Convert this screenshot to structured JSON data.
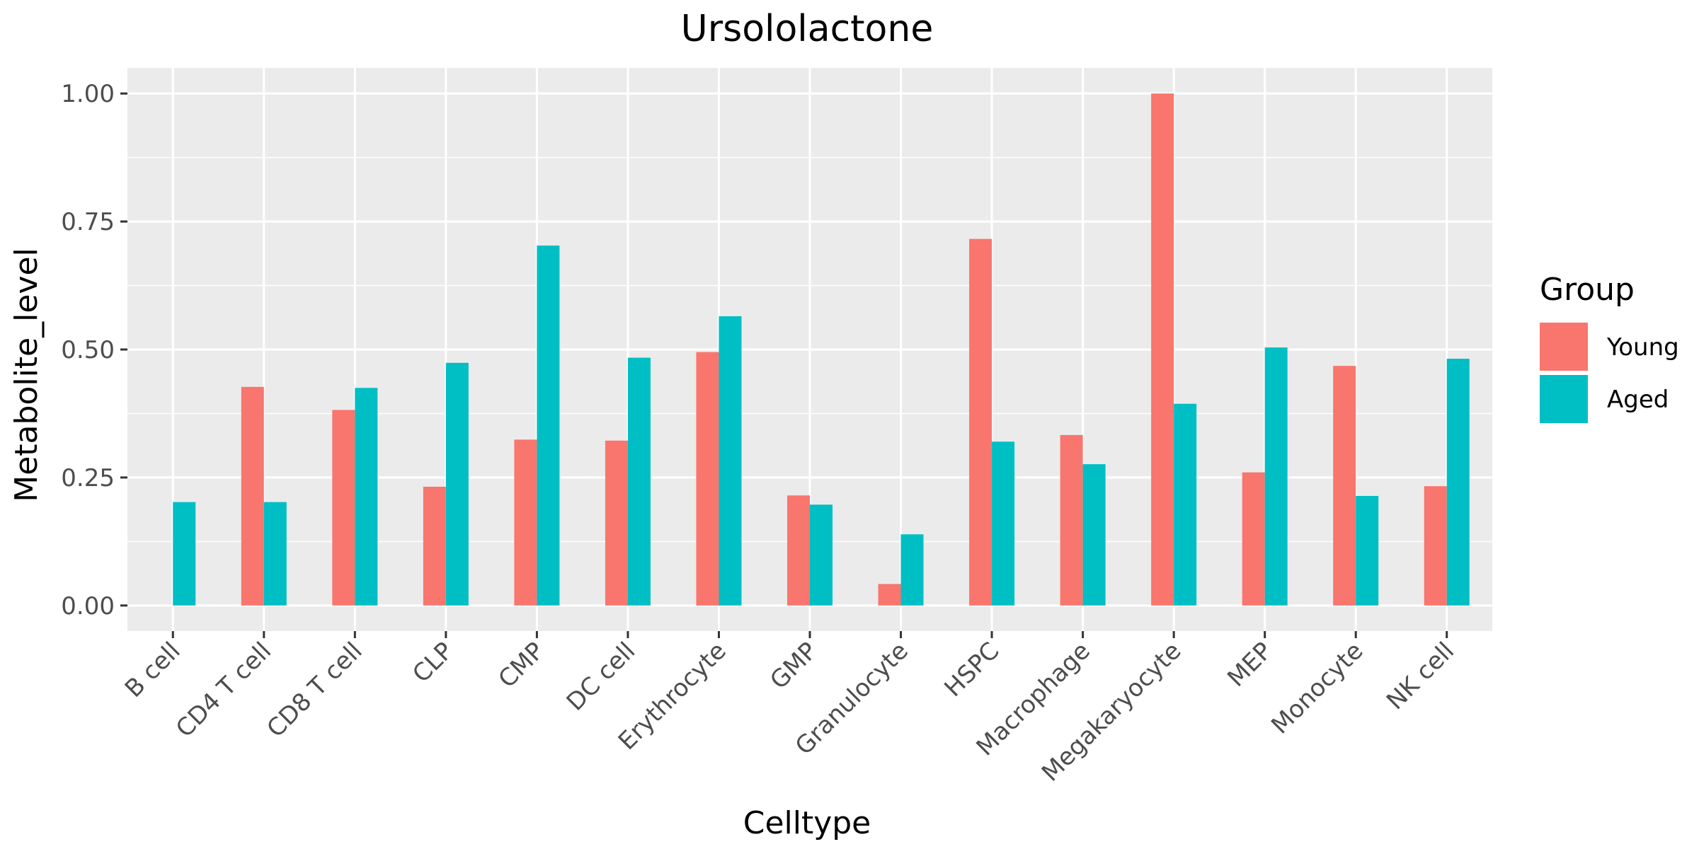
{
  "chart_data": {
    "type": "bar",
    "title": "Ursololactone",
    "xlabel": "Celltype",
    "ylabel": "Metabolite_level",
    "categories": [
      "B cell",
      "CD4 T cell",
      "CD8 T cell",
      "CLP",
      "CMP",
      "DC cell",
      "Erythrocyte",
      "GMP",
      "Granulocyte",
      "HSPC",
      "Macrophage",
      "Megakaryocyte",
      "MEP",
      "Monocyte",
      "NK cell"
    ],
    "series": [
      {
        "name": "Young",
        "color": "#F8766D",
        "values": [
          0.0,
          0.427,
          0.382,
          0.232,
          0.324,
          0.322,
          0.495,
          0.215,
          0.042,
          0.716,
          0.333,
          1.0,
          0.26,
          0.468,
          0.233
        ]
      },
      {
        "name": "Aged",
        "color": "#00BFC4",
        "values": [
          0.202,
          0.202,
          0.425,
          0.474,
          0.703,
          0.484,
          0.565,
          0.197,
          0.139,
          0.32,
          0.276,
          0.394,
          0.504,
          0.214,
          0.482
        ]
      }
    ],
    "ylim": [
      -0.05,
      1.05
    ],
    "yticks": [
      0.0,
      0.25,
      0.5,
      0.75,
      1.0
    ],
    "ytick_labels": [
      "0.00",
      "0.25",
      "0.50",
      "0.75",
      "1.00"
    ],
    "grid": true,
    "panel_background": "#EBEBEB",
    "legend": {
      "title": "Group",
      "position": "right"
    }
  }
}
